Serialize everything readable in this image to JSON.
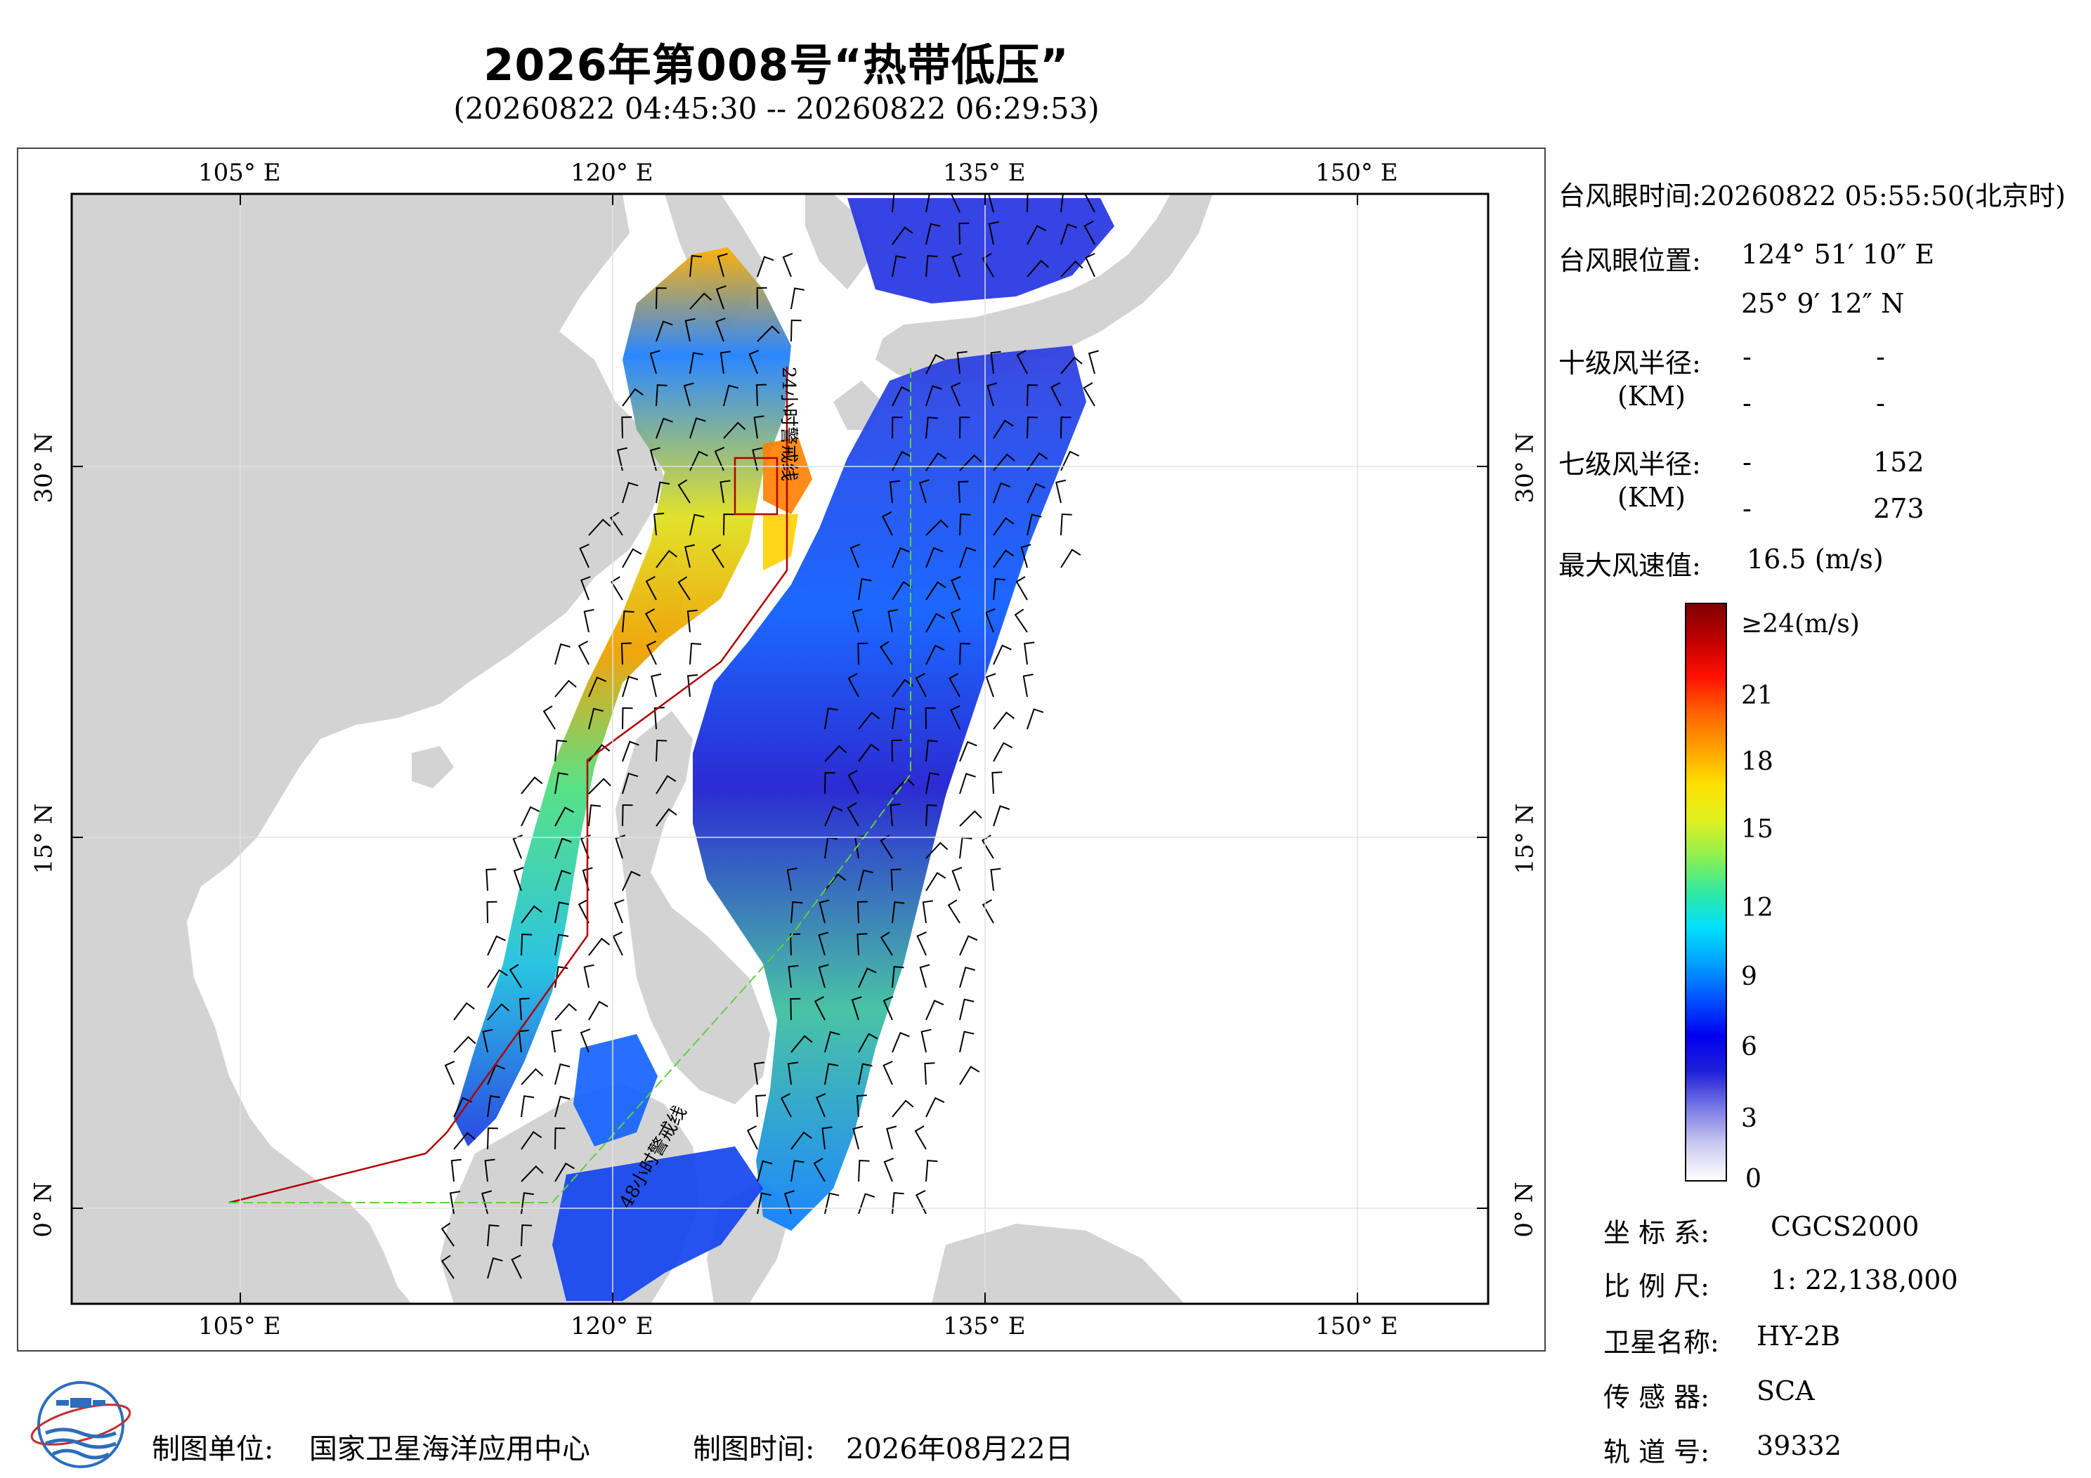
{
  "header": {
    "title": "2026年第008号“热带低压”",
    "subtitle": "(20260822 04:45:30 -- 20260822 06:29:53)"
  },
  "map": {
    "lon_labels": [
      "105° E",
      "120° E",
      "135° E",
      "150° E"
    ],
    "lat_labels": [
      "30° N",
      "15° N",
      "0° N"
    ],
    "warn_line_24h": "24小时警戒线",
    "warn_line_48h": "48小时警戒线",
    "land_color": "#d3d3d3",
    "sea_color": "#ffffff"
  },
  "info": {
    "eye_time_label": "台风眼时间:",
    "eye_time_value": "20260822 05:55:50(北京时)",
    "eye_pos_label": "台风眼位置:",
    "eye_lon": "124° 51′ 10″ E",
    "eye_lat": "25° 9′ 12″ N",
    "r10_label": "十级风半径:",
    "r10_unit": "(KM)",
    "r10_values": [
      "-",
      "-",
      "-",
      "-"
    ],
    "r7_label": "七级风半径:",
    "r7_unit": "(KM)",
    "r7_values": [
      "-",
      "152",
      "-",
      "273"
    ],
    "max_wind_label": "最大风速值:",
    "max_wind_value": "16.5 (m/s)"
  },
  "colorbar": {
    "top_label": "≥24(m/s)",
    "ticks": [
      "21",
      "18",
      "15",
      "12",
      "9",
      "6",
      "3",
      "0"
    ],
    "colors": [
      "#ffffff",
      "#c9c9f0",
      "#7a7ae6",
      "#2020d8",
      "#0000f0",
      "#0050ff",
      "#00a0ff",
      "#00e0ff",
      "#30e8a0",
      "#90f050",
      "#e0f020",
      "#ffe000",
      "#ffa000",
      "#ff6000",
      "#ff1000",
      "#c00000",
      "#800000"
    ]
  },
  "meta": {
    "crs_label": "坐 标 系:",
    "crs_value": "CGCS2000",
    "scale_label": "比 例 尺:",
    "scale_value": "1: 22,138,000",
    "sat_label": "卫星名称:",
    "sat_value": "HY-2B",
    "sensor_label": "传 感 器:",
    "sensor_value": "SCA",
    "orbit_label": "轨 道 号:",
    "orbit_value": "39332"
  },
  "footer": {
    "org_label": "制图单位:",
    "org_value": "国家卫星海洋应用中心",
    "time_label": "制图时间:",
    "time_value": "2026年08月22日"
  }
}
